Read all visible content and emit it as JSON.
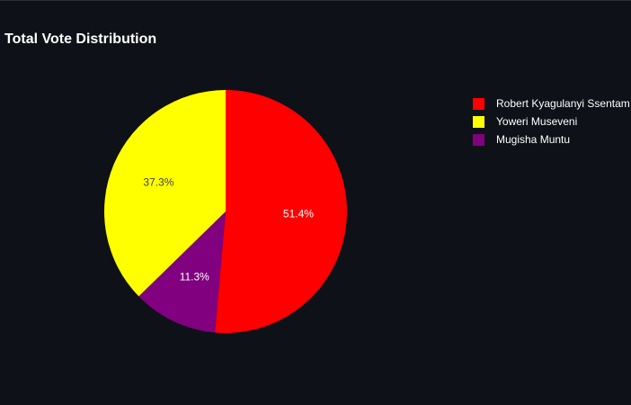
{
  "chart_data": {
    "type": "pie",
    "title": "Total Vote Distribution",
    "slices": [
      {
        "label": "Robert Kyagulanyi Ssentamu",
        "legend_text": "Robert Kyagulanyi Ssentam",
        "value": 51.4,
        "value_label": "51.4%",
        "color": "#ff0000",
        "label_color": "#ffffff"
      },
      {
        "label": "Mugisha Muntu",
        "legend_text": "Mugisha Muntu",
        "value": 11.3,
        "value_label": "11.3%",
        "color": "#800080",
        "label_color": "#ffffff"
      },
      {
        "label": "Yoweri Museveni",
        "legend_text": "Yoweri Museveni",
        "value": 37.3,
        "value_label": "37.3%",
        "color": "#ffff00",
        "label_color": "#444444"
      }
    ],
    "legend": {
      "placement": "top-right",
      "order": [
        "Robert Kyagulanyi Ssentamu",
        "Yoweri Museveni",
        "Mugisha Muntu"
      ]
    },
    "direction": "clockwise",
    "start": "top"
  },
  "colors": {
    "background": "#0e1117",
    "text": "#ffffff"
  }
}
